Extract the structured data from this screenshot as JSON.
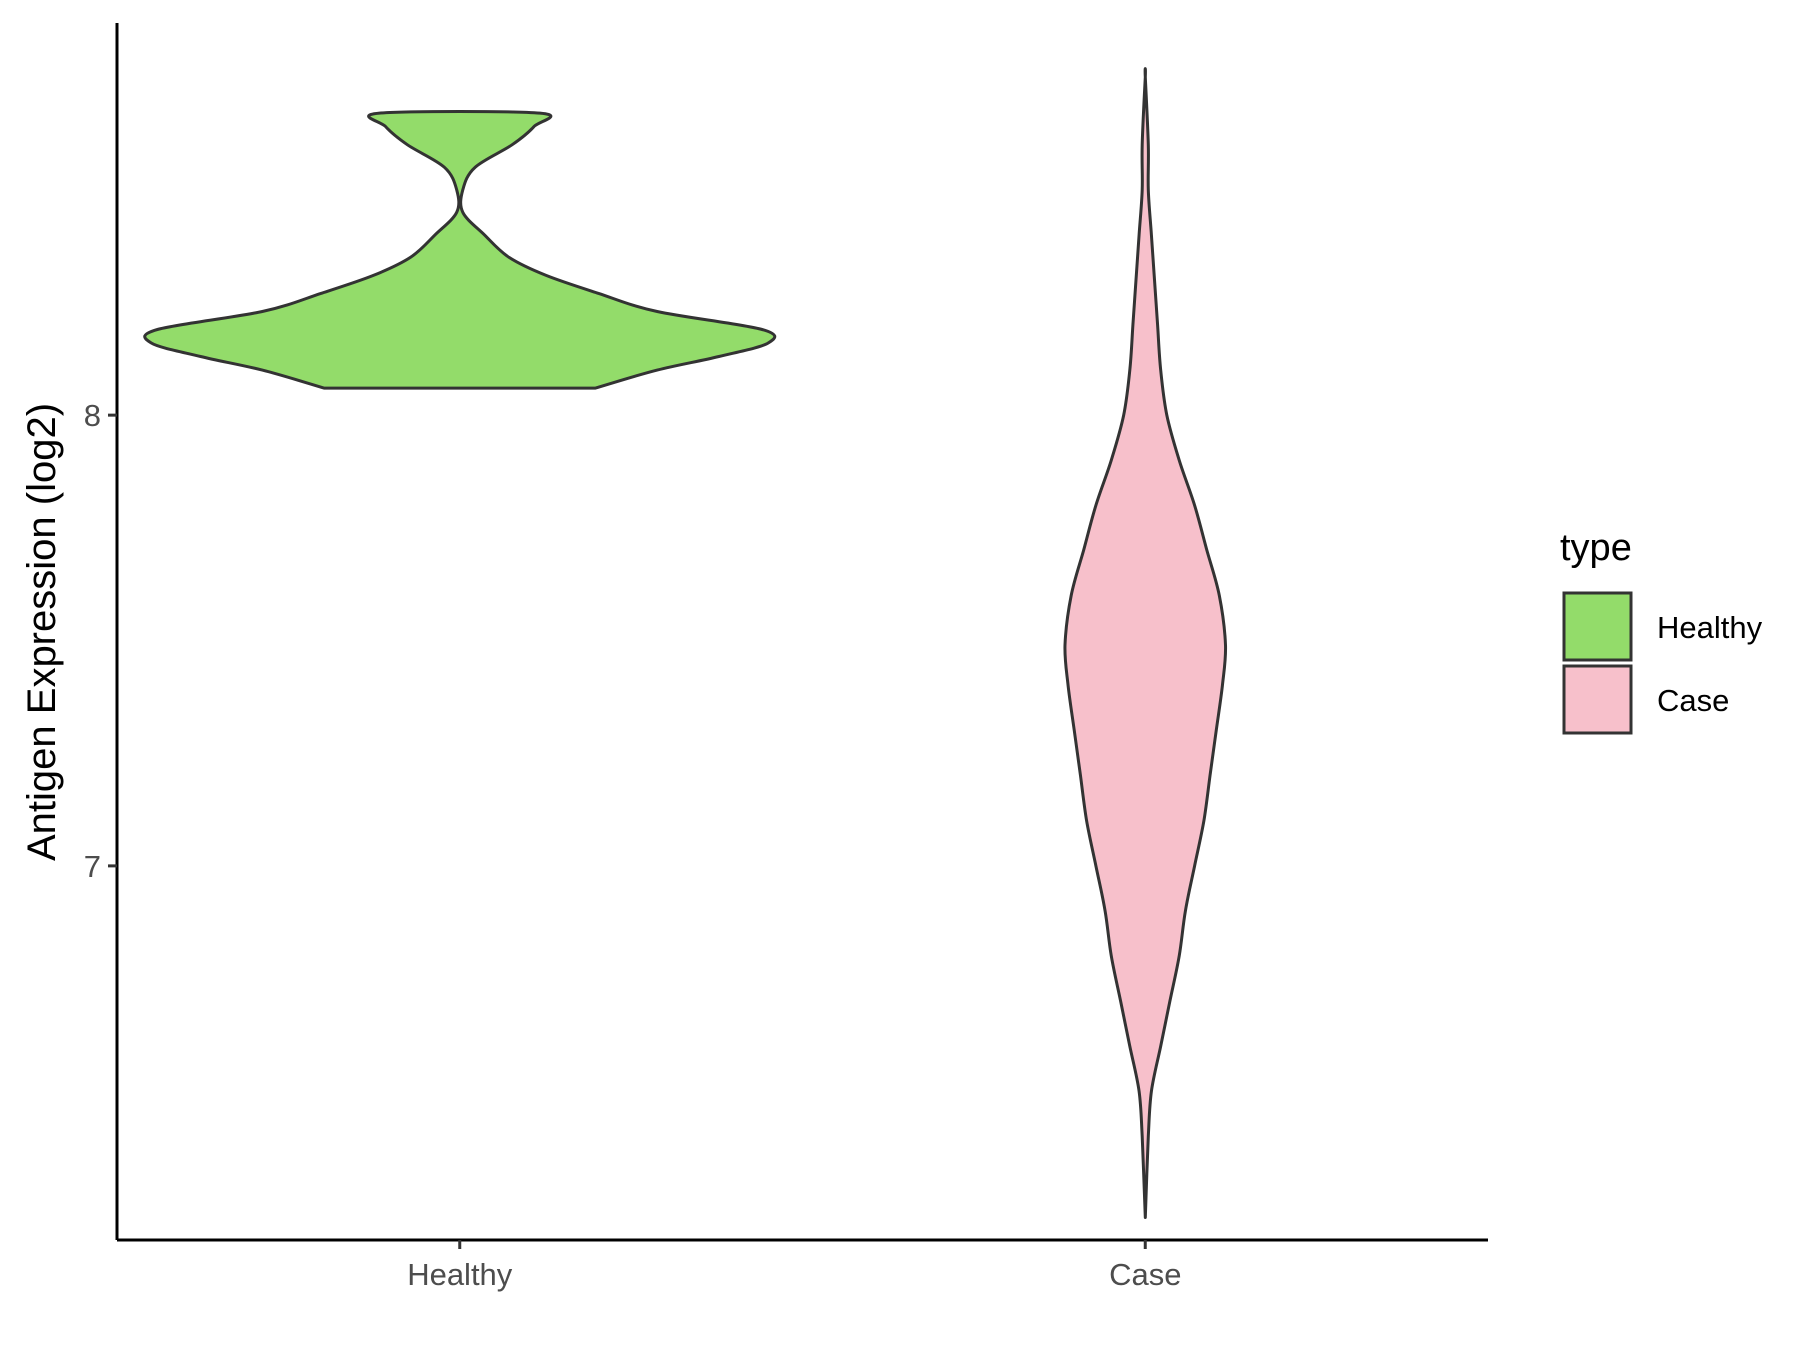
{
  "chart_data": {
    "type": "violin",
    "title": "",
    "xlabel": "",
    "ylabel": "Antigen Expression (log2)",
    "categories": [
      "Healthy",
      "Case"
    ],
    "y_ticks": [
      7,
      8
    ],
    "y_tick_labels": [
      "7",
      "8"
    ],
    "ylim": [
      6.17,
      8.87
    ],
    "grid": false,
    "legend": {
      "title": "type",
      "position": "right",
      "entries": [
        {
          "label": "Healthy",
          "color": "#93DC6A"
        },
        {
          "label": "Case",
          "color": "#F7C0CB"
        }
      ]
    },
    "series": [
      {
        "name": "Healthy",
        "color": "#93DC6A",
        "min": 8.06,
        "max": 8.67,
        "density_profile": [
          {
            "y": 8.06,
            "halfwidth": 0.44
          },
          {
            "y": 8.1,
            "halfwidth": 0.64
          },
          {
            "y": 8.13,
            "halfwidth": 0.84
          },
          {
            "y": 8.16,
            "halfwidth": 1.0
          },
          {
            "y": 8.19,
            "halfwidth": 0.98
          },
          {
            "y": 8.23,
            "halfwidth": 0.64
          },
          {
            "y": 8.27,
            "halfwidth": 0.45
          },
          {
            "y": 8.31,
            "halfwidth": 0.28
          },
          {
            "y": 8.35,
            "halfwidth": 0.16
          },
          {
            "y": 8.4,
            "halfwidth": 0.08
          },
          {
            "y": 8.45,
            "halfwidth": 0.01
          },
          {
            "y": 8.5,
            "halfwidth": 0.01
          },
          {
            "y": 8.55,
            "halfwidth": 0.05
          },
          {
            "y": 8.6,
            "halfwidth": 0.17
          },
          {
            "y": 8.64,
            "halfwidth": 0.24
          },
          {
            "y": 8.67,
            "halfwidth": 0.26
          }
        ]
      },
      {
        "name": "Case",
        "color": "#F7C0CB",
        "min": 6.22,
        "max": 8.75,
        "density_profile": [
          {
            "y": 6.22,
            "halfwidth": 0.0
          },
          {
            "y": 6.4,
            "halfwidth": 0.01
          },
          {
            "y": 6.5,
            "halfwidth": 0.02
          },
          {
            "y": 6.6,
            "halfwidth": 0.05
          },
          {
            "y": 6.7,
            "halfwidth": 0.08
          },
          {
            "y": 6.8,
            "halfwidth": 0.11
          },
          {
            "y": 6.9,
            "halfwidth": 0.13
          },
          {
            "y": 7.0,
            "halfwidth": 0.16
          },
          {
            "y": 7.1,
            "halfwidth": 0.19
          },
          {
            "y": 7.2,
            "halfwidth": 0.21
          },
          {
            "y": 7.3,
            "halfwidth": 0.23
          },
          {
            "y": 7.4,
            "halfwidth": 0.25
          },
          {
            "y": 7.49,
            "halfwidth": 0.26
          },
          {
            "y": 7.6,
            "halfwidth": 0.24
          },
          {
            "y": 7.7,
            "halfwidth": 0.2
          },
          {
            "y": 7.8,
            "halfwidth": 0.16
          },
          {
            "y": 7.9,
            "halfwidth": 0.11
          },
          {
            "y": 8.0,
            "halfwidth": 0.07
          },
          {
            "y": 8.1,
            "halfwidth": 0.05
          },
          {
            "y": 8.2,
            "halfwidth": 0.04
          },
          {
            "y": 8.3,
            "halfwidth": 0.03
          },
          {
            "y": 8.4,
            "halfwidth": 0.02
          },
          {
            "y": 8.5,
            "halfwidth": 0.01
          },
          {
            "y": 8.6,
            "halfwidth": 0.01
          },
          {
            "y": 8.75,
            "halfwidth": 0.0
          }
        ]
      }
    ]
  }
}
